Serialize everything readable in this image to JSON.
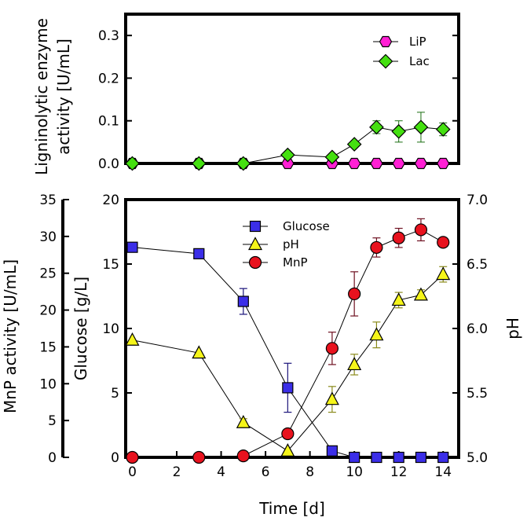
{
  "chart_data": [
    {
      "type": "scatter",
      "panel": "top",
      "ylabel_lines": [
        "Ligninolytic enzyme",
        "activity [U/mL]"
      ],
      "ylim": [
        0,
        0.35
      ],
      "yticks": [
        "0.0",
        "0.1",
        "0.2",
        "0.3"
      ],
      "yticks_values": [
        0.0,
        0.1,
        0.2,
        0.3
      ],
      "xlim": [
        -0.3,
        14.7
      ],
      "grid": false,
      "legend_placement": "top-right",
      "series": [
        {
          "name": "LiP",
          "marker": "hexagon",
          "color": "#ff1fd4",
          "x": [
            0,
            3,
            5,
            7,
            9,
            10,
            11,
            12,
            13,
            14
          ],
          "y": [
            0,
            0,
            0,
            0,
            0,
            0,
            0,
            0,
            0,
            0
          ],
          "err": [
            0,
            0,
            0,
            0,
            0,
            0,
            0,
            0,
            0,
            0
          ]
        },
        {
          "name": "Lac",
          "marker": "diamond",
          "color": "#44e010",
          "x": [
            0,
            3,
            5,
            7,
            9,
            10,
            11,
            12,
            13,
            14
          ],
          "y": [
            0,
            0,
            0,
            0.02,
            0.015,
            0.045,
            0.085,
            0.075,
            0.085,
            0.08
          ],
          "err": [
            0,
            0,
            0,
            0,
            0,
            0.005,
            0.015,
            0.025,
            0.035,
            0.015
          ]
        }
      ]
    },
    {
      "type": "scatter",
      "panel": "bottom",
      "xlabel": "Time [d]",
      "xlim": [
        -0.3,
        14.7
      ],
      "xticks": [
        0,
        2,
        4,
        6,
        8,
        10,
        12,
        14
      ],
      "grid": false,
      "legend_placement": "top-center",
      "axes": {
        "mnp": {
          "label": "MnP activity [U/mL]",
          "ylim": [
            0,
            35
          ],
          "ticks": [
            0,
            5,
            10,
            15,
            20,
            25,
            30,
            35
          ]
        },
        "glucose": {
          "label": "Glucose [g/L]",
          "ylim": [
            0,
            20
          ],
          "ticks": [
            0,
            5,
            10,
            15,
            20
          ]
        },
        "ph": {
          "label": "pH",
          "ylim": [
            5.0,
            7.0
          ],
          "ticks": [
            "5.0",
            "5.5",
            "6.0",
            "6.5",
            "7.0"
          ],
          "ticks_values": [
            5.0,
            5.5,
            6.0,
            6.5,
            7.0
          ]
        }
      },
      "series": [
        {
          "name": "Glucose",
          "axis": "glucose",
          "marker": "square",
          "color": "#3b2ee8",
          "errcolor": "#1a137a",
          "x": [
            0,
            3,
            5,
            7,
            9,
            10,
            11,
            12,
            13,
            14
          ],
          "y": [
            16.3,
            15.8,
            12.1,
            5.4,
            0.5,
            0,
            0,
            0,
            0,
            0
          ],
          "err": [
            0,
            0,
            1.0,
            1.9,
            0,
            0,
            0,
            0,
            0,
            0
          ]
        },
        {
          "name": "pH",
          "axis": "ph",
          "marker": "triangle",
          "color": "#f5f51a",
          "errcolor": "#8a8a1a",
          "x": [
            0,
            3,
            5,
            7,
            9,
            10,
            11,
            12,
            13,
            14
          ],
          "y": [
            5.91,
            5.81,
            5.27,
            5.05,
            5.45,
            5.72,
            5.95,
            6.22,
            6.26,
            6.42
          ],
          "err": [
            0,
            0,
            0.03,
            0,
            0.1,
            0.08,
            0.1,
            0.06,
            0.04,
            0.06
          ]
        },
        {
          "name": "MnP",
          "axis": "mnp",
          "marker": "circle",
          "color": "#e8121e",
          "errcolor": "#6e1020",
          "x": [
            0,
            3,
            5,
            7,
            9,
            10,
            11,
            12,
            13,
            14
          ],
          "y": [
            0,
            0,
            0.2,
            3.2,
            14.8,
            22.2,
            28.5,
            29.8,
            30.9,
            29.2
          ],
          "err": [
            0,
            0,
            0,
            0,
            2.2,
            3.0,
            1.3,
            1.3,
            1.5,
            0
          ]
        }
      ]
    }
  ]
}
